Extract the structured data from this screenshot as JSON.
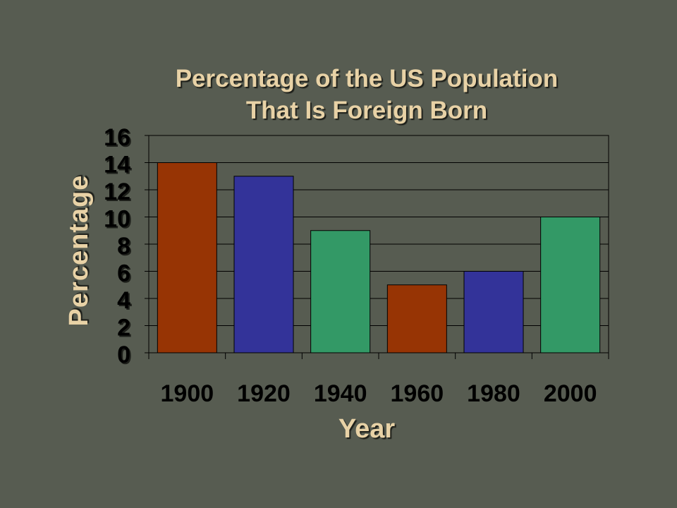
{
  "colors": {
    "background": "#575c51",
    "title": "#e8d2a6",
    "series_cycle": [
      "#973404",
      "#333399",
      "#339966"
    ],
    "gridline": "#000000"
  },
  "chart_data": {
    "type": "bar",
    "title_lines": [
      "Percentage of the US Population",
      "That Is Foreign Born"
    ],
    "xlabel": "Year",
    "ylabel": "Percentage",
    "categories": [
      "1900",
      "1920",
      "1940",
      "1960",
      "1980",
      "2000"
    ],
    "values": [
      14,
      13,
      9,
      5,
      6,
      10
    ],
    "ylim": [
      0,
      16
    ],
    "yticks": [
      "0",
      "2",
      "4",
      "6",
      "8",
      "10",
      "12",
      "14",
      "16"
    ],
    "grid": true,
    "legend": "none"
  }
}
